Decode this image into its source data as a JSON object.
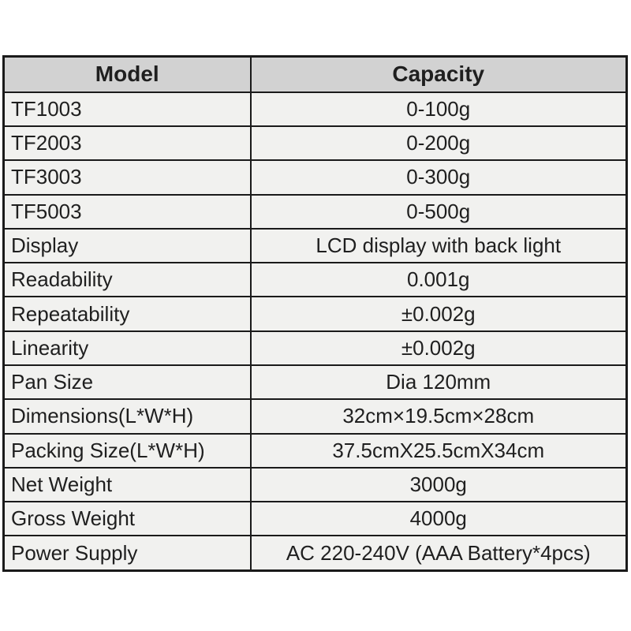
{
  "page": {
    "background": "#ffffff"
  },
  "colors": {
    "header_bg": "#d2d2d2",
    "row_bg": "#f1f1ef",
    "border": "#1a1a1a",
    "text": "#1f1f1f"
  },
  "table": {
    "columns": [
      {
        "label": "Model"
      },
      {
        "label": "Capacity"
      }
    ],
    "rows": [
      {
        "label": "TF1003",
        "value": "0-100g"
      },
      {
        "label": "TF2003",
        "value": "0-200g"
      },
      {
        "label": "TF3003",
        "value": "0-300g"
      },
      {
        "label": "TF5003",
        "value": "0-500g"
      },
      {
        "label": "Display",
        "value": "LCD display with back light"
      },
      {
        "label": "Readability",
        "value": "0.001g"
      },
      {
        "label": "Repeatability",
        "value": "±0.002g"
      },
      {
        "label": "Linearity",
        "value": "±0.002g"
      },
      {
        "label": "Pan Size",
        "value": "Dia 120mm"
      },
      {
        "label": "Dimensions(L*W*H)",
        "value": "32cm×19.5cm×28cm"
      },
      {
        "label": "Packing Size(L*W*H)",
        "value": "37.5cmX25.5cmX34cm"
      },
      {
        "label": "Net Weight",
        "value": "3000g"
      },
      {
        "label": "Gross Weight",
        "value": "4000g"
      },
      {
        "label": "Power Supply",
        "value": "AC 220-240V (AAA Battery*4pcs)"
      }
    ]
  }
}
